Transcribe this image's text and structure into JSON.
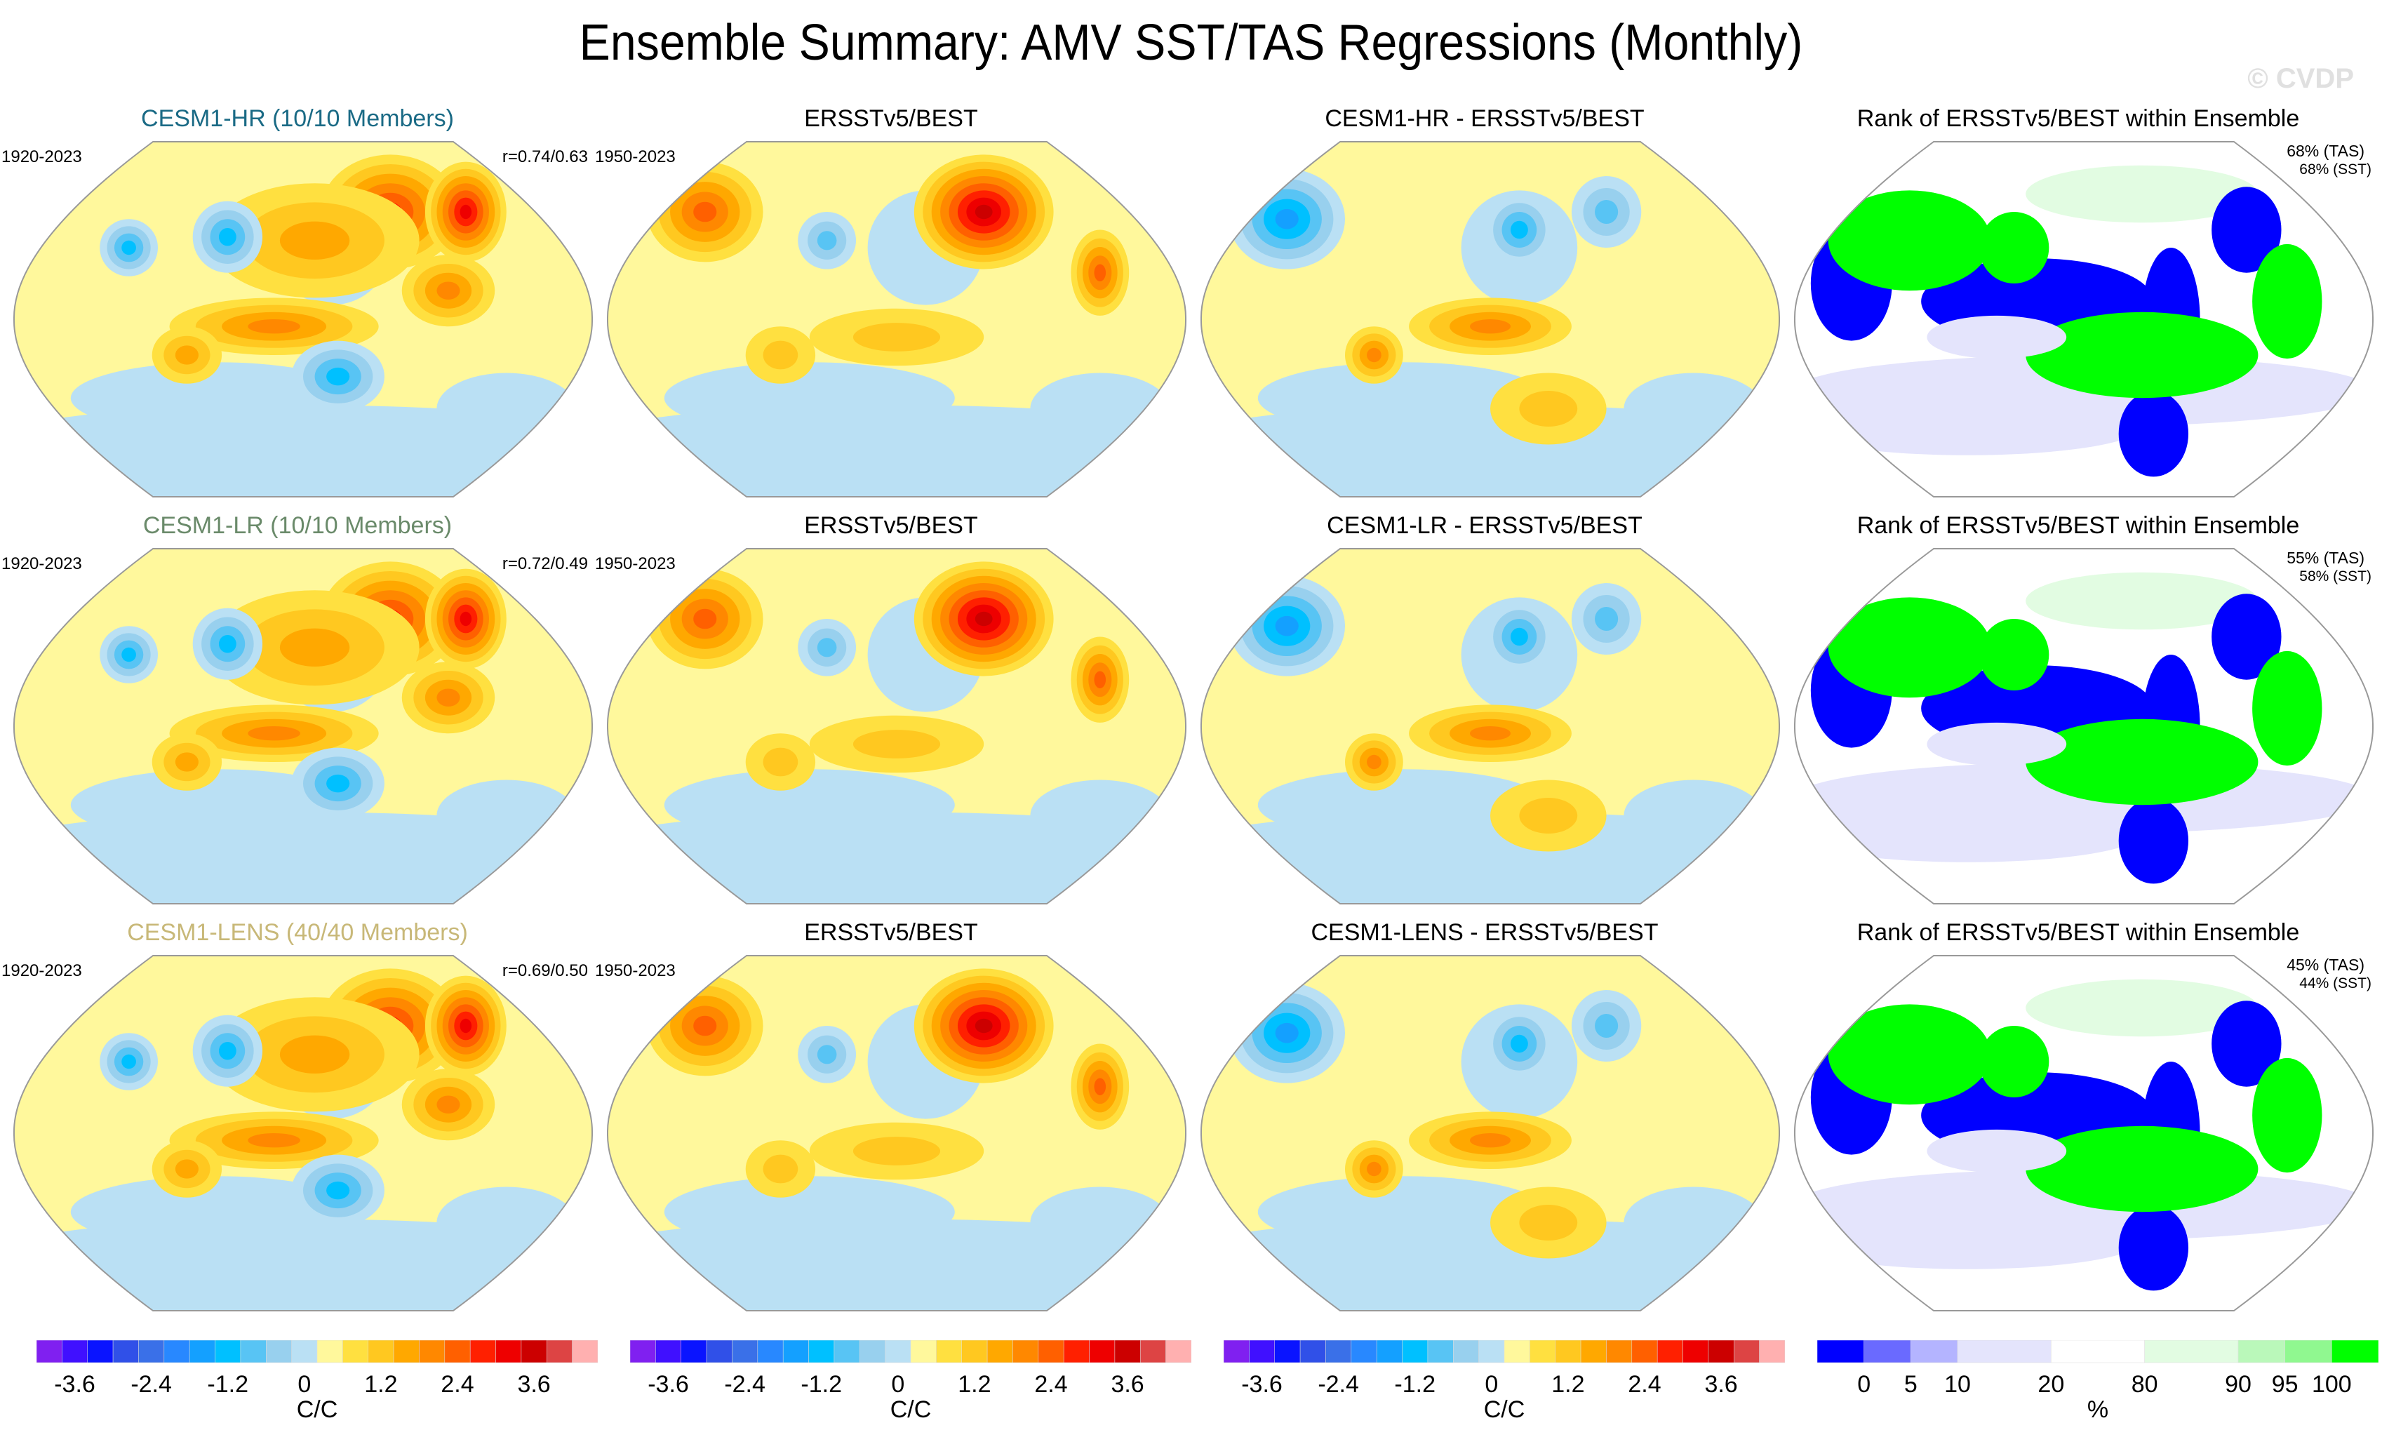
{
  "title": "Ensemble Summary: AMV SST/TAS Regressions (Monthly)",
  "watermark": "© CVDP",
  "rows": [
    {
      "model": {
        "title": "CESM1-HR (10/10 Members)",
        "title_color": "#1a6a85",
        "period": "1920-2023",
        "correlation": "r=0.74/0.63"
      },
      "obs": {
        "title": "ERSSTv5/BEST",
        "period": "1950-2023"
      },
      "diff": {
        "title": "CESM1-HR - ERSSTv5/BEST"
      },
      "rank": {
        "title": "Rank of ERSSTv5/BEST within Ensemble",
        "tas": "68% (TAS)",
        "sst": "68% (SST)"
      }
    },
    {
      "model": {
        "title": "CESM1-LR (10/10 Members)",
        "title_color": "#6a8a6a",
        "period": "1920-2023",
        "correlation": "r=0.72/0.49"
      },
      "obs": {
        "title": "ERSSTv5/BEST",
        "period": "1950-2023"
      },
      "diff": {
        "title": "CESM1-LR - ERSSTv5/BEST"
      },
      "rank": {
        "title": "Rank of ERSSTv5/BEST within Ensemble",
        "tas": "55% (TAS)",
        "sst": "58% (SST)"
      }
    },
    {
      "model": {
        "title": "CESM1-LENS (40/40 Members)",
        "title_color": "#c8b878",
        "period": "1920-2023",
        "correlation": "r=0.69/0.50"
      },
      "obs": {
        "title": "ERSSTv5/BEST",
        "period": "1950-2023"
      },
      "diff": {
        "title": "CESM1-LENS - ERSSTv5/BEST"
      },
      "rank": {
        "title": "Rank of ERSSTv5/BEST within Ensemble",
        "tas": "45% (TAS)",
        "sst": "44% (SST)"
      }
    }
  ],
  "chart_data": {
    "type": "heatmap",
    "title": "Ensemble Summary: AMV SST/TAS Regressions (Monthly)",
    "projection": "Pacific-centered global map",
    "regression_colorbar": {
      "units": "C/C",
      "tick_labels": [
        "-3.6",
        "-2.4",
        "-1.2",
        "0",
        "1.2",
        "2.4",
        "3.6"
      ],
      "colors": [
        "#8020f0",
        "#4010ff",
        "#0a14ff",
        "#3050e8",
        "#3a70e8",
        "#2888ff",
        "#14a0ff",
        "#00c0ff",
        "#58c4f4",
        "#98d0ee",
        "#bae0f4",
        "#fff89c",
        "#ffe040",
        "#ffc820",
        "#ffa800",
        "#ff8800",
        "#ff6000",
        "#ff2000",
        "#ee0000",
        "#cc0000",
        "#dd4444",
        "#ffb0b0"
      ]
    },
    "rank_colorbar": {
      "units": "%",
      "tick_labels": [
        "0",
        "5",
        "10",
        "20",
        "80",
        "90",
        "95",
        "100"
      ],
      "colors": [
        "#0000ff",
        "#6a6aff",
        "#b4b4ff",
        "#e4e4fc",
        "#ffffff",
        "#e2fce2",
        "#baf8ba",
        "#90f890",
        "#00ff00"
      ]
    },
    "panels": [
      {
        "row": 1,
        "title": "CESM1-HR (10/10 Members)",
        "period": "1920-2023",
        "pattern_correlation": [
          0.74,
          0.63
        ]
      },
      {
        "row": 1,
        "title": "ERSSTv5/BEST",
        "period": "1950-2023"
      },
      {
        "row": 1,
        "title": "CESM1-HR - ERSSTv5/BEST"
      },
      {
        "row": 1,
        "title": "Rank of ERSSTv5/BEST within Ensemble",
        "tas_pct": 68,
        "sst_pct": 68
      },
      {
        "row": 2,
        "title": "CESM1-LR (10/10 Members)",
        "period": "1920-2023",
        "pattern_correlation": [
          0.72,
          0.49
        ]
      },
      {
        "row": 2,
        "title": "ERSSTv5/BEST",
        "period": "1950-2023"
      },
      {
        "row": 2,
        "title": "CESM1-LR - ERSSTv5/BEST"
      },
      {
        "row": 2,
        "title": "Rank of ERSSTv5/BEST within Ensemble",
        "tas_pct": 55,
        "sst_pct": 58
      },
      {
        "row": 3,
        "title": "CESM1-LENS (40/40 Members)",
        "period": "1920-2023",
        "pattern_correlation": [
          0.69,
          0.5
        ]
      },
      {
        "row": 3,
        "title": "ERSSTv5/BEST",
        "period": "1950-2023"
      },
      {
        "row": 3,
        "title": "CESM1-LENS - ERSSTv5/BEST"
      },
      {
        "row": 3,
        "title": "Rank of ERSSTv5/BEST within Ensemble",
        "tas_pct": 45,
        "sst_pct": 44
      }
    ]
  }
}
